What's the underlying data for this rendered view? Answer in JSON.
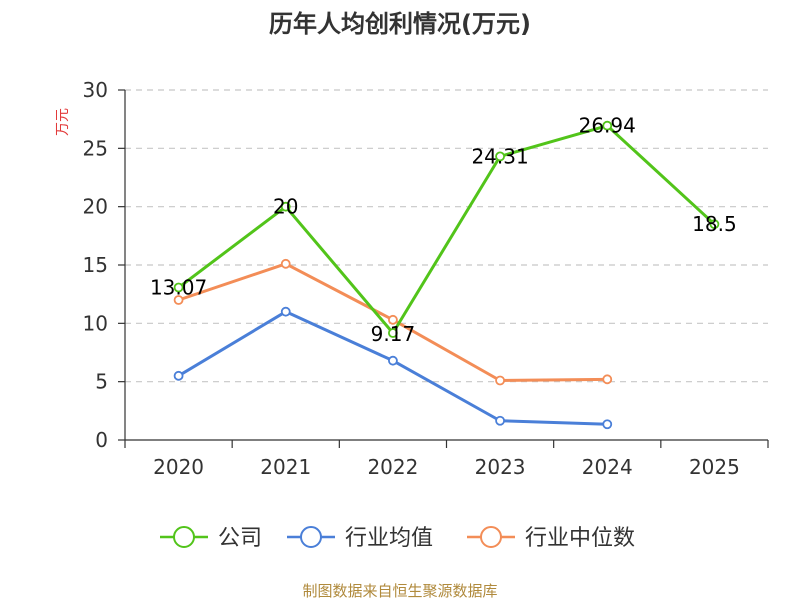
{
  "chart_data": {
    "type": "line",
    "title": "历年人均创利情况(万元)",
    "xlabel": "",
    "ylabel": "万元",
    "categories": [
      "2020",
      "2021",
      "2022",
      "2023",
      "2024",
      "2025"
    ],
    "ylim": [
      0,
      30
    ],
    "yticks": [
      0,
      5,
      10,
      15,
      20,
      25,
      30
    ],
    "grid": true,
    "legend_position": "bottom",
    "series": [
      {
        "name": "公司",
        "values": [
          13.07,
          20,
          9.17,
          24.31,
          26.94,
          18.5
        ],
        "labels": [
          "13.07",
          "20",
          "9.17",
          "24.31",
          "26.94",
          "18.5"
        ],
        "color": "#52c41a"
      },
      {
        "name": "行业均值",
        "values": [
          5.5,
          11.0,
          6.8,
          1.65,
          1.35,
          null
        ],
        "color": "#4a7fd8"
      },
      {
        "name": "行业中位数",
        "values": [
          12.0,
          15.1,
          10.3,
          5.1,
          5.2,
          null
        ],
        "color": "#f38d57"
      }
    ]
  },
  "footer": {
    "source": "制图数据来自恒生聚源数据库",
    "source_color": "#b08a3c"
  },
  "style": {
    "axis_color": "#333333",
    "grid_color": "#c8c8c8",
    "ylabel_color": "#e23a3a",
    "title_color": "#333333"
  }
}
